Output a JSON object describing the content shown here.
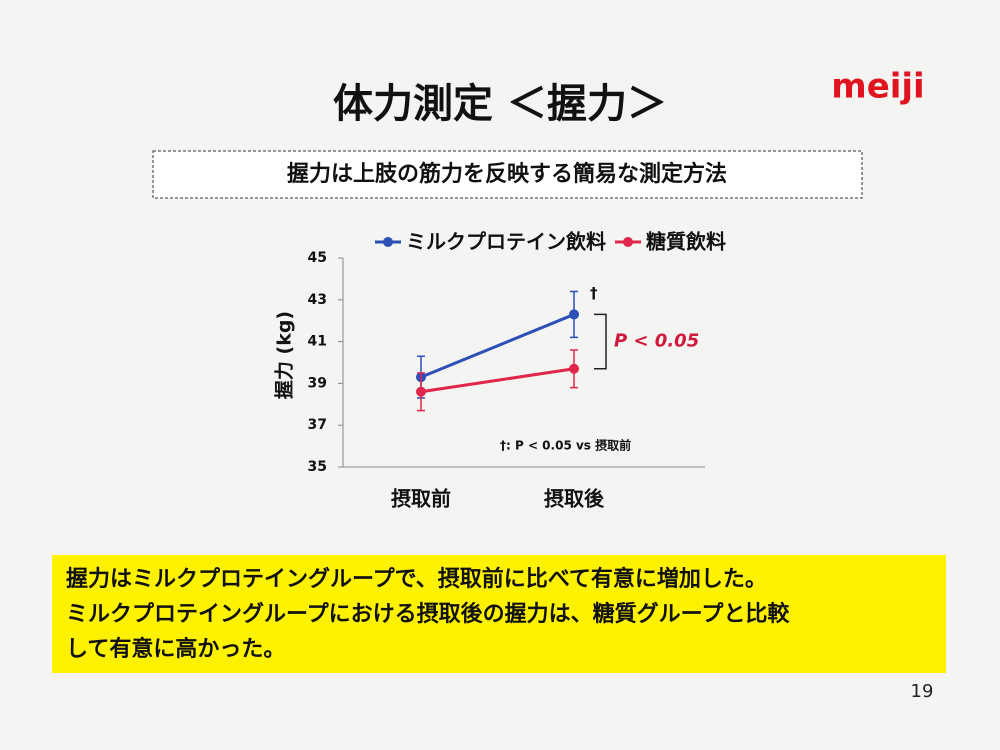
{
  "title": "体力測定 ＜握力＞",
  "logo": "meiji",
  "subtitle": "握力は上肢の筋力を反映する簡易な測定方法",
  "conclusion": [
    "握力はミルクプロテイングループで、摂取前に比べて有意に増加した。",
    "ミルクプロテイングループにおける摂取後の握力は、糖質グループと比較",
    "して有意に高かった。"
  ],
  "page_number": 19,
  "chart_data": {
    "type": "line",
    "ylabel": "握力 (kg)",
    "categories": [
      "摂取前",
      "摂取後"
    ],
    "series": [
      {
        "name": "ミルクプロテイン飲料",
        "color": "#2d4fb8",
        "values": [
          39.3,
          42.3
        ],
        "errors": [
          1.0,
          1.1
        ]
      },
      {
        "name": "糖質飲料",
        "color": "#e0264b",
        "values": [
          38.6,
          39.7
        ],
        "errors": [
          0.9,
          0.9
        ]
      }
    ],
    "ylim": [
      35,
      45
    ],
    "yticks": [
      35,
      37,
      39,
      41,
      43,
      45
    ],
    "annotations": {
      "dagger": "†",
      "significance": "P < 0.05",
      "footnote": "†: P < 0.05 vs 摂取前"
    }
  }
}
